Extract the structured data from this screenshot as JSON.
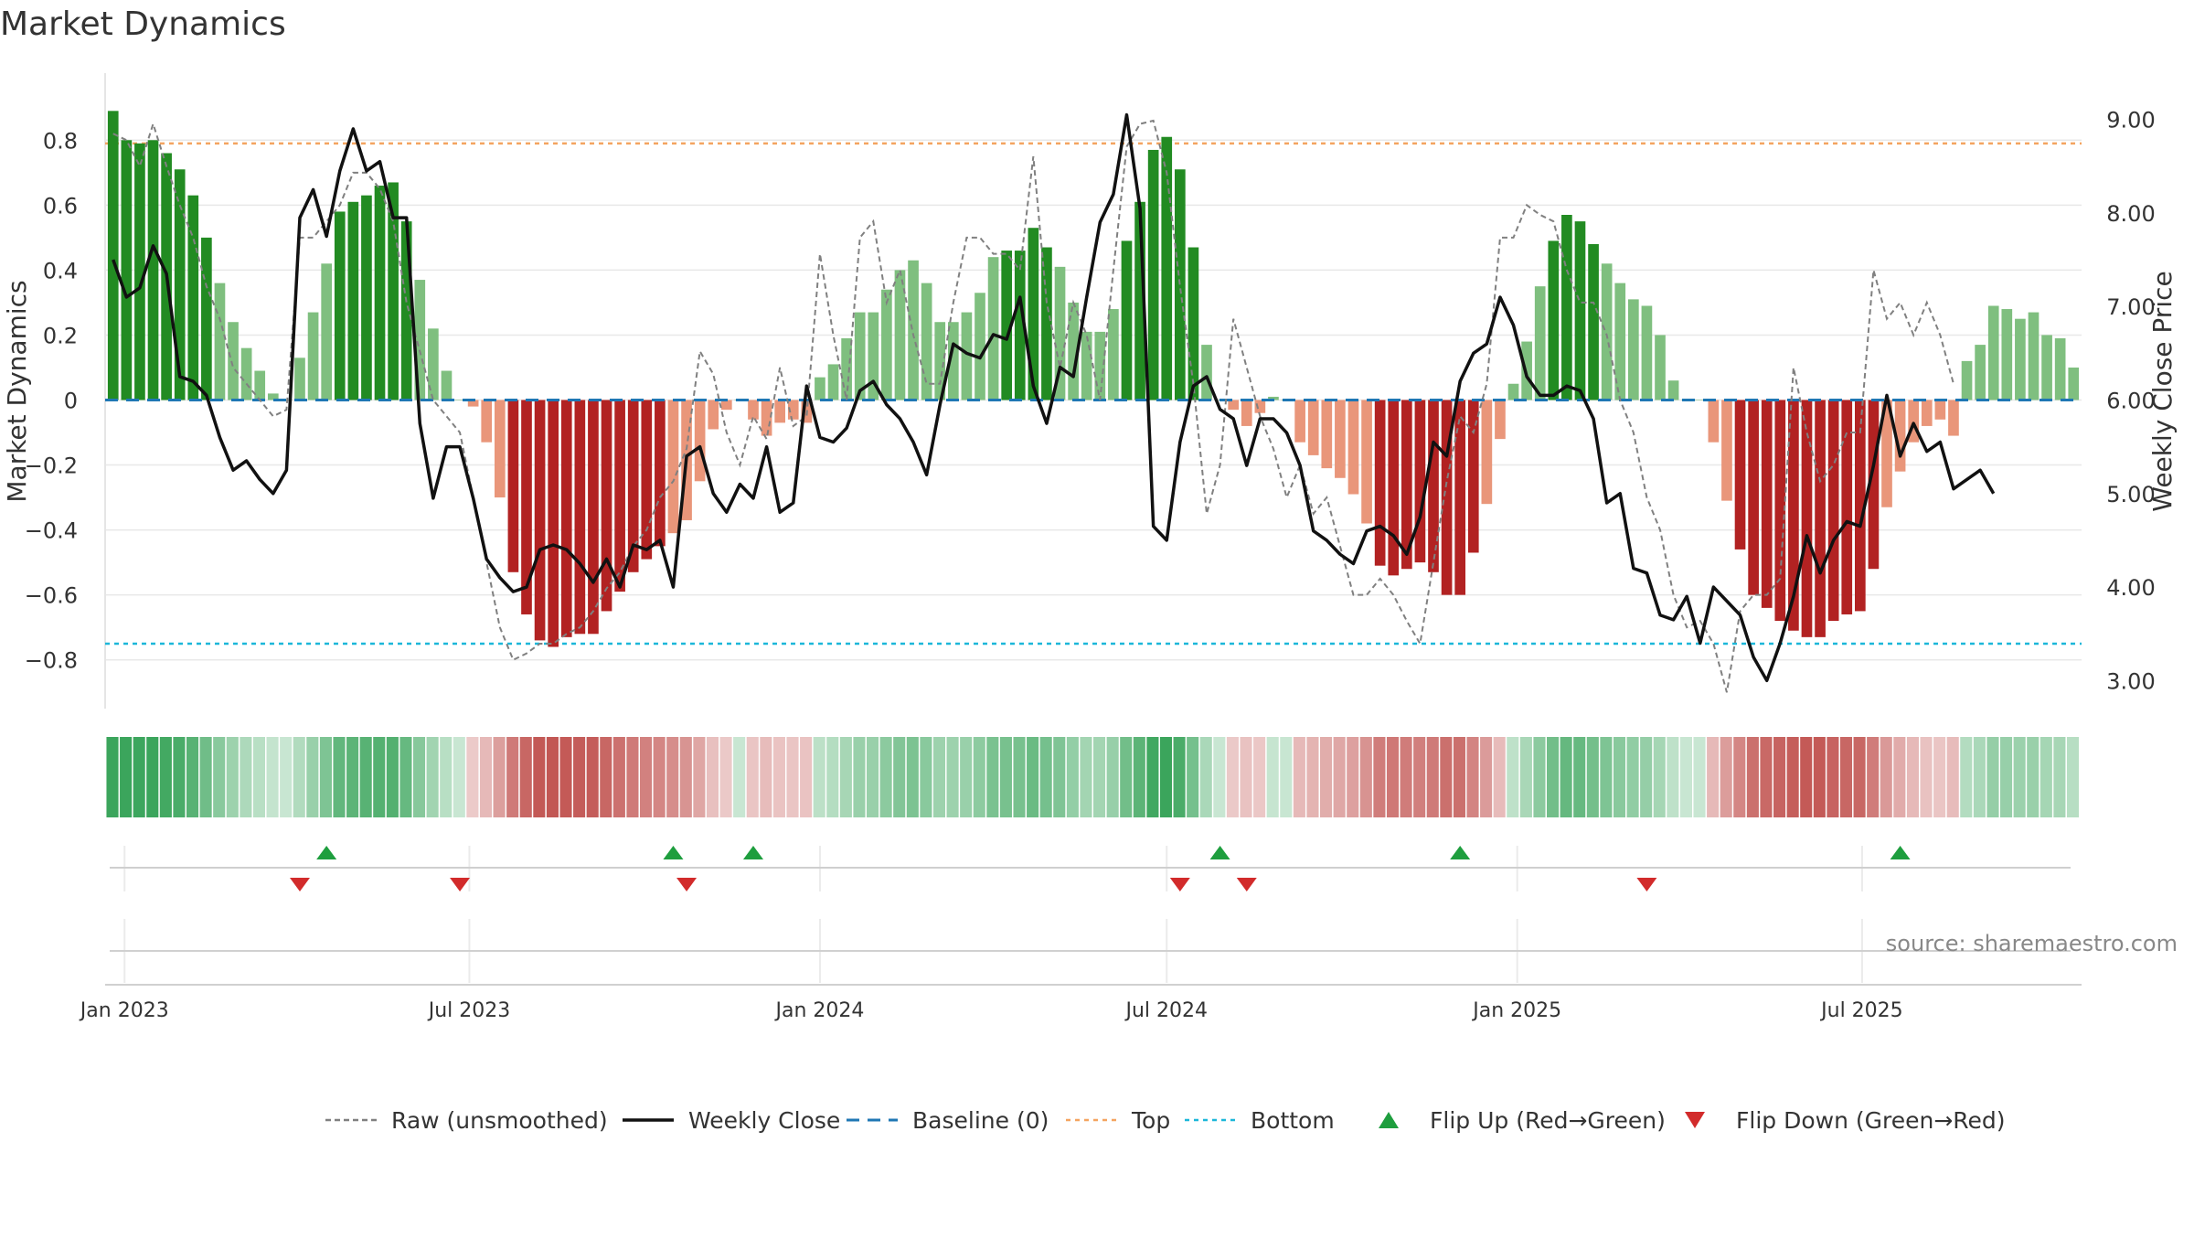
{
  "title": "Market Dynamics",
  "source_text": "source: sharemaestro.com",
  "colors": {
    "strong_green": "#228B22",
    "light_green": "#7FBF7F",
    "strong_red": "#B22222",
    "light_red": "#E9967A",
    "raw_line": "#808080",
    "close_line": "#111111",
    "baseline": "#1F77B4",
    "top_line": "#F4A460",
    "bottom_line": "#1CB7D9",
    "flip_up": "#1E9E3E",
    "flip_down": "#D22B2B"
  },
  "chart_data": {
    "type": "bar",
    "x_start_date": "2022-12-26",
    "interval_days": 7,
    "x_tick_labels": [
      "Jan 2023",
      "Jul 2023",
      "Jan 2024",
      "Jul 2024",
      "Jan 2025",
      "Jul 2025"
    ],
    "x_tick_dates": [
      "2023-01-01",
      "2023-07-01",
      "2024-01-01",
      "2024-07-01",
      "2025-01-01",
      "2025-07-01"
    ],
    "ylabel_left": "Market Dynamics",
    "ylabel_right": "Weekly Close Price",
    "ylim_left": [
      -0.95,
      0.95
    ],
    "ylim_right": [
      2.7,
      9.3
    ],
    "yticks_left": [
      0.8,
      0.6,
      0.4,
      0.2,
      0,
      -0.2,
      -0.4,
      -0.6,
      -0.8
    ],
    "ytick_labels_left": [
      "0.8",
      "0.6",
      "0.4",
      "0.2",
      "0",
      "−0.2",
      "−0.4",
      "−0.6",
      "−0.8"
    ],
    "yticks_right": [
      9.0,
      8.0,
      7.0,
      6.0,
      5.0,
      4.0,
      3.0
    ],
    "ytick_labels_right": [
      "9.00",
      "8.00",
      "7.00",
      "6.00",
      "5.00",
      "4.00",
      "3.00"
    ],
    "top_level": 0.79,
    "bottom_level": -0.75,
    "grid": true,
    "legend_position": "bottom",
    "series": [
      {
        "name": "Market Dynamics (smoothed)",
        "values": [
          0.89,
          0.8,
          0.79,
          0.8,
          0.76,
          0.71,
          0.63,
          0.5,
          0.36,
          0.24,
          0.16,
          0.09,
          0.02,
          0.0,
          0.13,
          0.27,
          0.42,
          0.58,
          0.61,
          0.63,
          0.66,
          0.67,
          0.55,
          0.37,
          0.22,
          0.09,
          0.0,
          -0.02,
          -0.13,
          -0.3,
          -0.53,
          -0.66,
          -0.74,
          -0.76,
          -0.73,
          -0.72,
          -0.72,
          -0.65,
          -0.59,
          -0.53,
          -0.49,
          -0.45,
          -0.41,
          -0.37,
          -0.25,
          -0.09,
          -0.03,
          0.0,
          -0.06,
          -0.11,
          -0.07,
          -0.06,
          -0.07,
          0.07,
          0.11,
          0.19,
          0.27,
          0.27,
          0.34,
          0.4,
          0.43,
          0.36,
          0.24,
          0.24,
          0.27,
          0.33,
          0.44,
          0.46,
          0.46,
          0.53,
          0.47,
          0.41,
          0.3,
          0.21,
          0.21,
          0.28,
          0.49,
          0.61,
          0.77,
          0.81,
          0.71,
          0.47,
          0.17,
          0.0,
          -0.03,
          -0.08,
          -0.04,
          0.01,
          0.0,
          -0.13,
          -0.17,
          -0.21,
          -0.24,
          -0.29,
          -0.38,
          -0.51,
          -0.54,
          -0.52,
          -0.5,
          -0.53,
          -0.6,
          -0.6,
          -0.47,
          -0.32,
          -0.12,
          0.05,
          0.18,
          0.35,
          0.49,
          0.57,
          0.55,
          0.48,
          0.42,
          0.36,
          0.31,
          0.29,
          0.2,
          0.06,
          0.0,
          0.0,
          -0.13,
          -0.31,
          -0.46,
          -0.6,
          -0.64,
          -0.68,
          -0.71,
          -0.73,
          -0.73,
          -0.68,
          -0.66,
          -0.65,
          -0.52,
          -0.33,
          -0.22,
          -0.13,
          -0.08,
          -0.06,
          -0.11,
          0.12,
          0.17,
          0.29,
          0.28,
          0.25,
          0.27,
          0.2,
          0.19,
          0.1
        ]
      },
      {
        "name": "Raw (unsmoothed)",
        "values": [
          0.82,
          0.8,
          0.72,
          0.85,
          0.72,
          0.6,
          0.5,
          0.35,
          0.25,
          0.1,
          0.05,
          0.0,
          -0.05,
          -0.03,
          0.5,
          0.5,
          0.55,
          0.6,
          0.7,
          0.7,
          0.65,
          0.55,
          0.3,
          0.15,
          0.0,
          -0.05,
          -0.1,
          -0.3,
          -0.5,
          -0.7,
          -0.8,
          -0.78,
          -0.75,
          -0.75,
          -0.72,
          -0.7,
          -0.65,
          -0.58,
          -0.53,
          -0.45,
          -0.4,
          -0.3,
          -0.25,
          -0.15,
          0.15,
          0.08,
          -0.1,
          -0.2,
          -0.05,
          -0.12,
          0.1,
          -0.08,
          -0.05,
          0.45,
          0.2,
          0.0,
          0.5,
          0.55,
          0.3,
          0.4,
          0.2,
          0.05,
          0.05,
          0.3,
          0.5,
          0.5,
          0.45,
          0.45,
          0.4,
          0.75,
          0.3,
          0.1,
          0.3,
          0.2,
          0.0,
          0.4,
          0.78,
          0.85,
          0.86,
          0.7,
          0.35,
          0.05,
          -0.35,
          -0.2,
          0.25,
          0.1,
          -0.05,
          -0.15,
          -0.3,
          -0.2,
          -0.35,
          -0.3,
          -0.45,
          -0.6,
          -0.6,
          -0.55,
          -0.6,
          -0.68,
          -0.75,
          -0.5,
          -0.25,
          -0.05,
          -0.1,
          0.05,
          0.5,
          0.5,
          0.6,
          0.57,
          0.55,
          0.4,
          0.3,
          0.3,
          0.2,
          0.0,
          -0.1,
          -0.3,
          -0.4,
          -0.6,
          -0.7,
          -0.68,
          -0.75,
          -0.9,
          -0.65,
          -0.6,
          -0.6,
          -0.55,
          0.1,
          -0.1,
          -0.25,
          -0.2,
          -0.1,
          -0.1,
          0.4,
          0.25,
          0.3,
          0.2,
          0.3,
          0.2,
          0.05
        ]
      },
      {
        "name": "Weekly Close",
        "axis": "right",
        "values": [
          7.5,
          7.1,
          7.2,
          7.65,
          7.35,
          6.25,
          6.2,
          6.05,
          5.6,
          5.25,
          5.35,
          5.15,
          5.0,
          5.25,
          7.95,
          8.25,
          7.75,
          8.45,
          8.9,
          8.45,
          8.55,
          7.95,
          7.95,
          5.75,
          4.95,
          5.5,
          5.5,
          4.95,
          4.3,
          4.1,
          3.95,
          4.0,
          4.4,
          4.45,
          4.4,
          4.25,
          4.05,
          4.3,
          4.0,
          4.45,
          4.4,
          4.5,
          4.0,
          5.4,
          5.5,
          5.0,
          4.8,
          5.1,
          4.95,
          5.5,
          4.8,
          4.9,
          6.15,
          5.6,
          5.55,
          5.7,
          6.1,
          6.2,
          5.95,
          5.8,
          5.55,
          5.2,
          5.95,
          6.6,
          6.5,
          6.45,
          6.7,
          6.65,
          7.1,
          6.15,
          5.75,
          6.35,
          6.25,
          7.1,
          7.9,
          8.2,
          9.05,
          8.05,
          4.65,
          4.5,
          5.55,
          6.15,
          6.25,
          5.9,
          5.8,
          5.3,
          5.8,
          5.8,
          5.65,
          5.3,
          4.6,
          4.5,
          4.35,
          4.25,
          4.6,
          4.65,
          4.55,
          4.35,
          4.75,
          5.55,
          5.4,
          6.2,
          6.5,
          6.6,
          7.1,
          6.8,
          6.25,
          6.05,
          6.05,
          6.15,
          6.1,
          5.8,
          4.9,
          5.0,
          4.2,
          4.15,
          3.7,
          3.65,
          3.9,
          3.4,
          4.0,
          3.85,
          3.7,
          3.25,
          3.0,
          3.4,
          3.9,
          4.55,
          4.15,
          4.5,
          4.7,
          4.65,
          5.3,
          6.05,
          5.4,
          5.75,
          5.45,
          5.55,
          5.05,
          5.15,
          5.25,
          5.0
        ]
      }
    ],
    "flip_up_dates": [
      "2023-04-17",
      "2023-10-16",
      "2023-11-27",
      "2024-07-29",
      "2024-12-02",
      "2025-07-21"
    ],
    "flip_down_dates": [
      "2023-04-03",
      "2023-06-26",
      "2023-10-23",
      "2024-07-08",
      "2024-08-12",
      "2025-03-10"
    ]
  },
  "legend": [
    {
      "label": "Raw (unsmoothed)",
      "style": "dashed-gray"
    },
    {
      "label": "Weekly Close",
      "style": "solid-black"
    },
    {
      "label": "Baseline (0)",
      "style": "dashed-blue"
    },
    {
      "label": "Top",
      "style": "dotted-orange"
    },
    {
      "label": "Bottom",
      "style": "dotted-cyan"
    },
    {
      "label": "Flip Up (Red→Green)",
      "style": "triangle-up-green"
    },
    {
      "label": "Flip Down (Green→Red)",
      "style": "triangle-down-red"
    }
  ]
}
